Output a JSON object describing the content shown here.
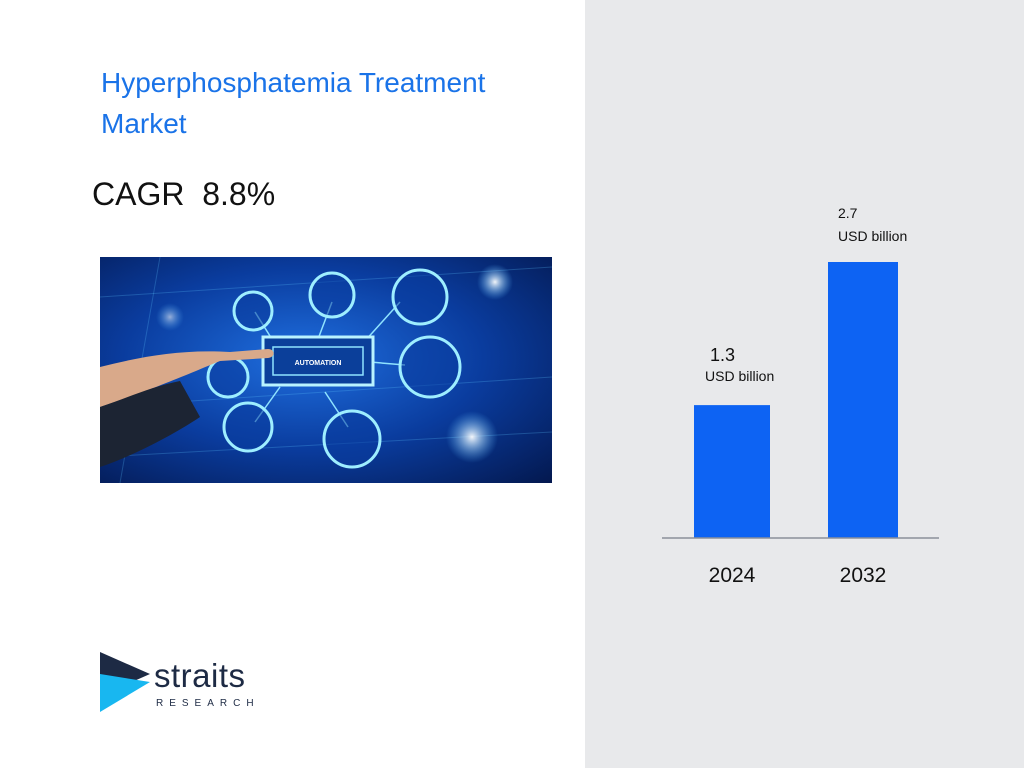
{
  "title": "Hyperphosphatemia Treatment Market",
  "cagr": {
    "label": "CAGR",
    "value": "8.8%"
  },
  "hero_image": {
    "label": "AUTOMATION"
  },
  "logo": {
    "name": "straits",
    "sub": "RESEARCH"
  },
  "colors": {
    "accent": "#1a73e8",
    "bar": "#0d63f3",
    "panel": "#e8e9eb"
  },
  "chart_data": {
    "type": "bar",
    "categories": [
      "2024",
      "2032"
    ],
    "values": [
      1.3,
      2.7
    ],
    "value_labels": [
      "1.3",
      "2.7"
    ],
    "unit": "USD billion",
    "ylim": [
      0,
      2.7
    ],
    "grid": false
  }
}
